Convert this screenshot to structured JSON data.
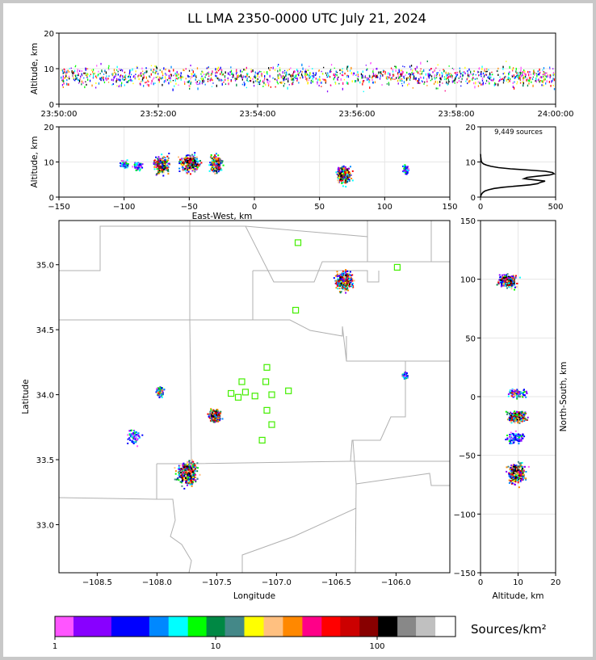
{
  "title": "LL LMA 2350-0000 UTC July 21, 2024",
  "sources_text": "9,449 sources",
  "colorbar_label": "Sources/km²",
  "colors": {
    "colorbar": [
      "#ff55ff",
      "#8800ff",
      "#8800ff",
      "#0000ff",
      "#0000ff",
      "#0088ff",
      "#00ffff",
      "#00ff00",
      "#008844",
      "#448888",
      "#ffff00",
      "#ffc080",
      "#ff8800",
      "#ff0088",
      "#ff0000",
      "#cc0000",
      "#880000",
      "#000000",
      "#888888",
      "#c0c0c0",
      "#ffffff"
    ],
    "station": "#44ee00",
    "border": "#b0b0b0"
  },
  "chart_data": [
    {
      "name": "time-altitude",
      "type": "scatter",
      "ylabel": "Altitude, km",
      "ylim": [
        0,
        20
      ],
      "yticks": [
        "0",
        "10",
        "20"
      ],
      "xlim": [
        "23:50:00",
        "24:00:00"
      ],
      "xticks": [
        "23:50:00",
        "23:52:00",
        "23:54:00",
        "23:56:00",
        "23:58:00",
        "24:00:00"
      ],
      "grid": true,
      "description_note": "",
      "altitude_band_km": [
        4,
        12
      ]
    },
    {
      "name": "east-west-altitude",
      "type": "scatter",
      "xlabel": "East-West, km",
      "ylabel": "Altitude, km",
      "xlim": [
        -150,
        150
      ],
      "ylim": [
        0,
        20
      ],
      "xticks": [
        "−150",
        "−100",
        "−50",
        "0",
        "50",
        "100",
        "150"
      ],
      "yticks": [
        "0",
        "10",
        "20"
      ],
      "grid": true,
      "clusters": [
        {
          "x": -100,
          "y": 9.5,
          "spread": 3,
          "density": 1
        },
        {
          "x": -90,
          "y": 9,
          "spread": 3,
          "density": 1
        },
        {
          "x": -72,
          "y": 9.3,
          "spread": 5,
          "density": 3
        },
        {
          "x": -50,
          "y": 9.8,
          "spread": 7,
          "density": 3
        },
        {
          "x": -30,
          "y": 9.5,
          "spread": 4,
          "density": 3
        },
        {
          "x": 68,
          "y": 6.5,
          "spread": 5,
          "density": 3
        },
        {
          "x": 116,
          "y": 8,
          "spread": 2,
          "density": 1
        }
      ]
    },
    {
      "name": "altitude-histogram",
      "type": "line",
      "xlim": [
        0,
        500
      ],
      "ylim": [
        0,
        20
      ],
      "xticks": [
        "0",
        "500"
      ],
      "yticks": [
        "0",
        "10",
        "20"
      ],
      "counts": [
        0,
        2,
        5,
        10,
        18,
        30,
        55,
        90,
        150,
        240,
        330,
        380,
        400,
        430,
        360,
        290,
        310,
        380,
        460,
        490,
        480,
        430,
        320,
        200,
        120,
        70,
        40,
        20,
        10,
        6,
        4,
        3,
        2,
        1,
        1,
        0
      ],
      "bin_altitude_start_km": 0,
      "bin_width_km": 0.35
    },
    {
      "name": "plan-view",
      "type": "scatter",
      "xlabel": "Longitude",
      "ylabel": "Latitude",
      "xlim": [
        -108.82,
        -105.55
      ],
      "ylim": [
        32.63,
        35.34
      ],
      "xticks": [
        "−108.5",
        "−108.0",
        "−107.5",
        "−107.0",
        "−106.5",
        "−106.0"
      ],
      "yticks": [
        "33.0",
        "33.5",
        "34.0",
        "34.5",
        "35.0"
      ],
      "clusters": [
        {
          "lon": -106.44,
          "lat": 34.88,
          "spread": 0.06,
          "density": 3
        },
        {
          "lon": -107.98,
          "lat": 34.03,
          "spread": 0.03,
          "density": 2
        },
        {
          "lon": -107.52,
          "lat": 33.84,
          "spread": 0.04,
          "density": 3
        },
        {
          "lon": -108.2,
          "lat": 33.68,
          "spread": 0.05,
          "density": 1
        },
        {
          "lon": -107.75,
          "lat": 33.4,
          "spread": 0.08,
          "density": 3
        },
        {
          "lon": -105.93,
          "lat": 34.15,
          "spread": 0.02,
          "density": 1
        }
      ],
      "stations": [
        {
          "lon": -106.82,
          "lat": 35.17
        },
        {
          "lon": -105.99,
          "lat": 34.98
        },
        {
          "lon": -106.84,
          "lat": 34.65
        },
        {
          "lon": -107.08,
          "lat": 34.21
        },
        {
          "lon": -107.29,
          "lat": 34.1
        },
        {
          "lon": -107.09,
          "lat": 34.1
        },
        {
          "lon": -107.38,
          "lat": 34.01
        },
        {
          "lon": -107.32,
          "lat": 33.98
        },
        {
          "lon": -107.26,
          "lat": 34.02
        },
        {
          "lon": -107.18,
          "lat": 33.99
        },
        {
          "lon": -107.04,
          "lat": 34.0
        },
        {
          "lon": -106.9,
          "lat": 34.03
        },
        {
          "lon": -107.08,
          "lat": 33.88
        },
        {
          "lon": -107.04,
          "lat": 33.77
        },
        {
          "lon": -107.12,
          "lat": 33.65
        }
      ]
    },
    {
      "name": "altitude-north-south",
      "type": "scatter",
      "xlabel": "Altitude, km",
      "ylabel": "North-South, km",
      "xlim": [
        0,
        20
      ],
      "ylim": [
        -150,
        150
      ],
      "xticks": [
        "0",
        "10",
        "20"
      ],
      "yticks": [
        "−150",
        "−100",
        "−50",
        "0",
        "50",
        "100",
        "150"
      ],
      "clusters": [
        {
          "x": 7,
          "y": 99,
          "spread": 5,
          "density": 3
        },
        {
          "x": 9.5,
          "y": 3,
          "spread": 4,
          "density": 2
        },
        {
          "x": 9.5,
          "y": -17,
          "spread": 4,
          "density": 3
        },
        {
          "x": 9,
          "y": -35,
          "spread": 5,
          "density": 1
        },
        {
          "x": 9.5,
          "y": -65,
          "spread": 8,
          "density": 3
        }
      ]
    }
  ],
  "colorbar": {
    "ticks": [
      "1",
      "10",
      "100"
    ]
  }
}
